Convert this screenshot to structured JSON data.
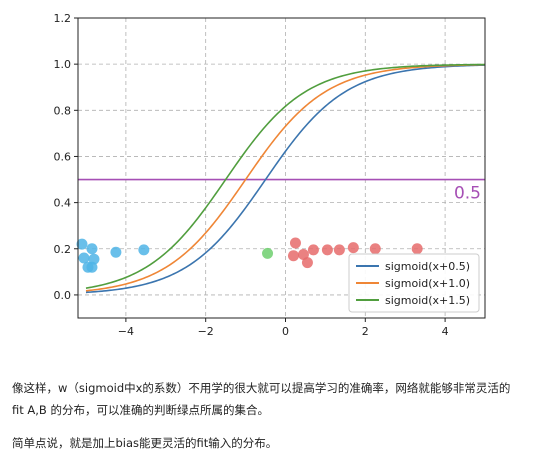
{
  "chart_data": {
    "type": "line",
    "x_range": [
      -5.2,
      5.0
    ],
    "ylim": [
      -0.1,
      1.2
    ],
    "x_ticks": [
      -4,
      -2,
      0,
      2,
      4
    ],
    "x_tick_labels": [
      "−4",
      "−2",
      "0",
      "2",
      "4"
    ],
    "y_ticks": [
      0.0,
      0.2,
      0.4,
      0.6,
      0.8,
      1.0,
      1.2
    ],
    "y_tick_labels": [
      "0.0",
      "0.2",
      "0.4",
      "0.6",
      "0.8",
      "1.0",
      "1.2"
    ],
    "grid": true,
    "grid_style": "dashed",
    "legend_placement": "bottom-right",
    "series": [
      {
        "name": "sigmoid(x+0.5)",
        "shift": 0.5,
        "x_start": -5.0,
        "x_end": 5.0,
        "color": "#3b75af"
      },
      {
        "name": "sigmoid(x+1.0)",
        "shift": 1.0,
        "x_start": -5.0,
        "x_end": 5.0,
        "color": "#ef8636"
      },
      {
        "name": "sigmoid(x+1.5)",
        "shift": 1.5,
        "x_start": -5.0,
        "x_end": 5.0,
        "color": "#519e3e"
      }
    ],
    "hline": {
      "y": 0.5,
      "label": "0.5",
      "color": "#a64fb5"
    },
    "scatter_groups": [
      {
        "color": "#4fb4e6",
        "points": [
          [
            -5.1,
            0.22
          ],
          [
            -5.05,
            0.16
          ],
          [
            -4.95,
            0.12
          ],
          [
            -4.85,
            0.2
          ],
          [
            -4.8,
            0.155
          ],
          [
            -4.85,
            0.12
          ],
          [
            -4.25,
            0.185
          ],
          [
            -3.55,
            0.195
          ]
        ]
      },
      {
        "color": "#6fcf6f",
        "points": [
          [
            -0.45,
            0.18
          ]
        ]
      },
      {
        "color": "#e66b6b",
        "points": [
          [
            0.25,
            0.225
          ],
          [
            0.2,
            0.17
          ],
          [
            0.45,
            0.175
          ],
          [
            0.55,
            0.14
          ],
          [
            0.7,
            0.195
          ],
          [
            1.05,
            0.195
          ],
          [
            1.35,
            0.195
          ],
          [
            1.7,
            0.205
          ],
          [
            2.25,
            0.2
          ],
          [
            3.3,
            0.2
          ]
        ]
      }
    ]
  },
  "text": {
    "p1_line1": "像这样，w（sigmoid中x的系数）不用学的很大就可以提高学习的准确率，网络就能够非常灵活的",
    "p1_line2": "fit A,B 的分布，可以准确的判断绿点所属的集合。",
    "p2": "简单点说，就是加上bias能更灵活的fit输入的分布。"
  }
}
